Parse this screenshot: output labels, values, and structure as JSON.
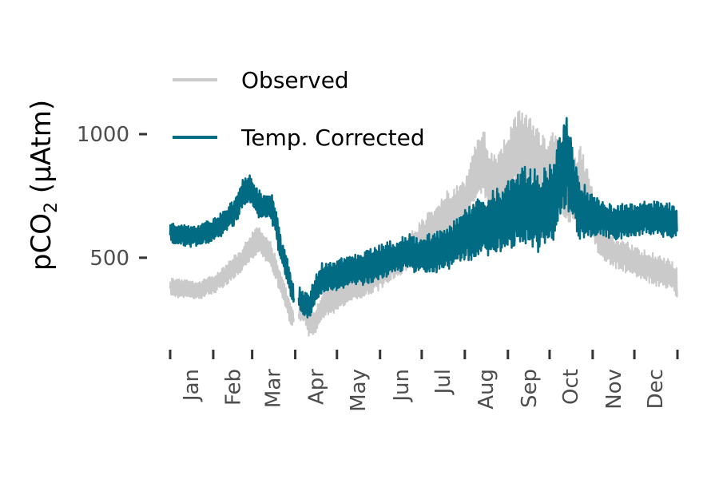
{
  "chart_data": {
    "type": "line",
    "title": "",
    "xlabel": "",
    "ylabel": {
      "main": "pCO",
      "sub": "2",
      "unit": " (μAtm)"
    },
    "xlim": [
      0,
      365
    ],
    "ylim": [
      170,
      1420
    ],
    "y_ticks": [
      500,
      1000
    ],
    "x_ticks": [
      {
        "label": "Jan",
        "day": 15
      },
      {
        "label": "Feb",
        "day": 45
      },
      {
        "label": "Mar",
        "day": 74
      },
      {
        "label": "Apr",
        "day": 105
      },
      {
        "label": "May",
        "day": 135
      },
      {
        "label": "Jun",
        "day": 166
      },
      {
        "label": "Jul",
        "day": 196
      },
      {
        "label": "Aug",
        "day": 227
      },
      {
        "label": "Sep",
        "day": 258
      },
      {
        "label": "Oct",
        "day": 288
      },
      {
        "label": "Nov",
        "day": 319
      },
      {
        "label": "Dec",
        "day": 349
      }
    ],
    "x_tick_marks": [
      0,
      31,
      59,
      90,
      120,
      151,
      181,
      212,
      243,
      273,
      304,
      334,
      365
    ],
    "grid": false,
    "legend_position": "top-left",
    "series": [
      {
        "name": "Observed",
        "color": "#9e9e9e",
        "day": [
          0,
          10,
          20,
          30,
          40,
          50,
          55,
          60,
          65,
          72,
          77,
          82,
          86,
          88,
          92,
          95,
          100,
          105,
          110,
          120,
          130,
          140,
          150,
          160,
          170,
          180,
          190,
          200,
          210,
          215,
          220,
          225,
          230,
          235,
          240,
          245,
          250,
          255,
          260,
          265,
          270,
          275,
          280,
          285,
          290,
          295,
          300,
          310,
          320,
          330,
          340,
          350,
          360,
          365
        ],
        "center": [
          380,
          375,
          365,
          390,
          430,
          480,
          520,
          560,
          570,
          520,
          440,
          360,
          280,
          260,
          280,
          300,
          230,
          250,
          310,
          340,
          370,
          400,
          430,
          470,
          510,
          570,
          620,
          680,
          700,
          760,
          860,
          880,
          820,
          800,
          840,
          900,
          950,
          960,
          930,
          880,
          850,
          870,
          820,
          780,
          760,
          820,
          750,
          560,
          520,
          500,
          470,
          450,
          430,
          400
        ],
        "spread": [
          60,
          60,
          60,
          60,
          70,
          80,
          80,
          90,
          90,
          80,
          80,
          70,
          70,
          60,
          60,
          80,
          80,
          80,
          90,
          90,
          90,
          90,
          100,
          100,
          110,
          120,
          140,
          150,
          160,
          180,
          200,
          220,
          220,
          200,
          220,
          220,
          240,
          240,
          220,
          220,
          220,
          240,
          220,
          220,
          200,
          220,
          200,
          120,
          100,
          100,
          100,
          100,
          100,
          100
        ]
      },
      {
        "name": "Temp. Corrected",
        "color": "#006b82",
        "day": [
          0,
          10,
          20,
          30,
          40,
          48,
          52,
          58,
          62,
          67,
          72,
          76,
          80,
          85,
          88,
          92,
          95,
          100,
          105,
          110,
          120,
          130,
          140,
          150,
          160,
          170,
          180,
          190,
          200,
          210,
          220,
          230,
          240,
          250,
          255,
          260,
          265,
          270,
          275,
          280,
          285,
          290,
          295,
          300,
          310,
          320,
          330,
          340,
          350,
          360,
          365
        ],
        "center": [
          600,
          590,
          590,
          610,
          650,
          700,
          760,
          780,
          730,
          700,
          720,
          640,
          520,
          440,
          360,
          360,
          320,
          300,
          380,
          420,
          430,
          450,
          460,
          480,
          500,
          520,
          510,
          520,
          540,
          580,
          620,
          640,
          660,
          700,
          720,
          700,
          680,
          700,
          720,
          820,
          900,
          780,
          700,
          680,
          660,
          640,
          650,
          660,
          660,
          650,
          640
        ],
        "spread": [
          70,
          70,
          70,
          70,
          80,
          90,
          90,
          90,
          90,
          90,
          90,
          90,
          80,
          80,
          70,
          70,
          80,
          80,
          90,
          100,
          100,
          100,
          110,
          110,
          110,
          120,
          120,
          130,
          140,
          160,
          190,
          200,
          220,
          240,
          260,
          260,
          260,
          260,
          260,
          300,
          320,
          260,
          220,
          160,
          120,
          110,
          110,
          110,
          110,
          110,
          110
        ]
      }
    ]
  }
}
